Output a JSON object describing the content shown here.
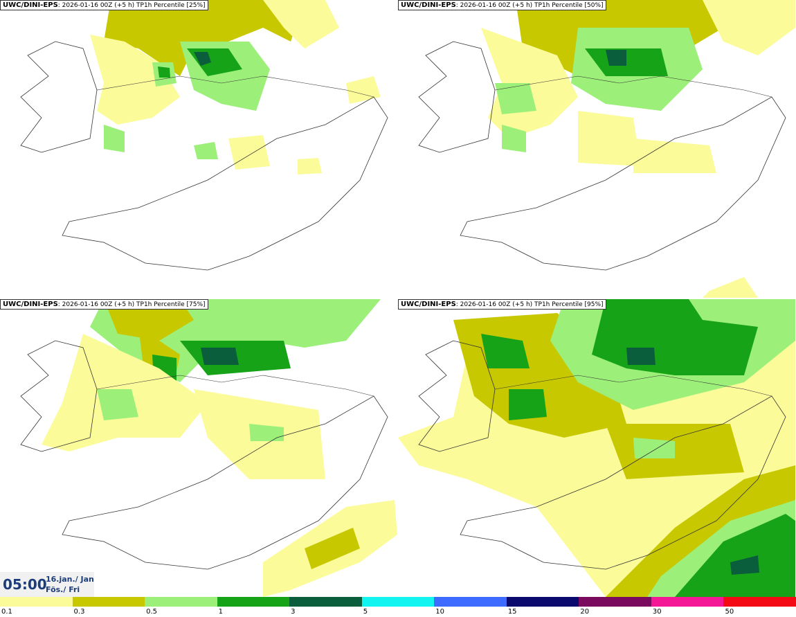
{
  "panels": [
    {
      "model": "UWC/DINI-EPS",
      "meta": ": 2026-01-16 00Z (+5 h)",
      "field": " TP1h Percentile [25%]"
    },
    {
      "model": "UWC/DINI-EPS",
      "meta": ": 2026-01-16 00Z (+5 h)",
      "field": " TP1h Percentile [50%]"
    },
    {
      "model": "UWC/DINI-EPS",
      "meta": ": 2026-01-16 00Z (+5 h)",
      "field": " TP1h Percentile [75%]"
    },
    {
      "model": "UWC/DINI-EPS",
      "meta": ": 2026-01-16 00Z (+5 h)",
      "field": " TP1h Percentile [95%]"
    }
  ],
  "time": {
    "clock": "05:00",
    "date": "16.jan./ Jan",
    "day": "Fös./ Fri"
  },
  "legend": {
    "colors": [
      "#fbfb9a",
      "#c8c800",
      "#9cf07a",
      "#17a317",
      "#0b5e3b",
      "#12f4f0",
      "#3d6bff",
      "#0a0a6e",
      "#7a0a5e",
      "#f41896",
      "#f40a14"
    ],
    "labels": [
      "0.1",
      "0.3",
      "0.5",
      "1",
      "3",
      "5",
      "10",
      "15",
      "20",
      "30",
      "50"
    ]
  },
  "colors": {
    "light_yellow": "#fbfb9a",
    "olive": "#c8c800",
    "light_green": "#9cf07a",
    "green": "#17a317",
    "dark_green": "#0b5e3b"
  }
}
